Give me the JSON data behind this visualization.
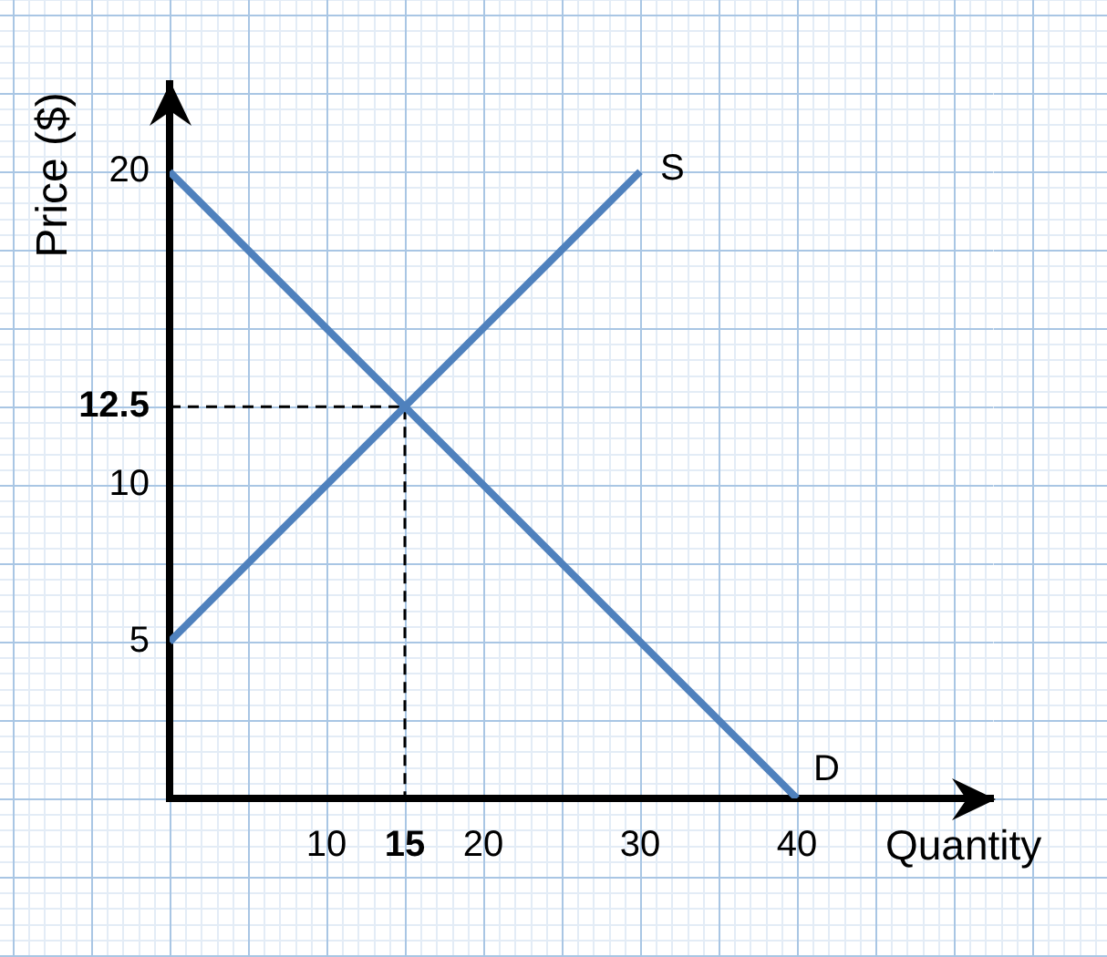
{
  "chart_data": {
    "type": "line",
    "xlabel": "Quantity",
    "ylabel": "Price ($)",
    "series": [
      {
        "name": "S",
        "color": "#4f81bd",
        "x": [
          0,
          30
        ],
        "values": [
          5,
          20
        ]
      },
      {
        "name": "D",
        "color": "#4f81bd",
        "x": [
          0,
          40
        ],
        "values": [
          20,
          0
        ]
      },
      {
        "color": "#000000",
        "x": [
          0,
          15,
          15
        ],
        "values": [
          12.5,
          12.5,
          0
        ],
        "line_style": "dashed"
      }
    ],
    "xlim": [
      0,
      52.5
    ],
    "ylim": [
      0,
      22.8
    ],
    "xticks": [
      {
        "value": 5,
        "label": null
      },
      10,
      15,
      20,
      {
        "value": 25,
        "label": null
      },
      30,
      {
        "value": 35,
        "label": null
      },
      40,
      {
        "value": 45,
        "label": null
      },
      {
        "value": 50,
        "label": null
      }
    ],
    "yticks": [
      {
        "value": 2.5,
        "label": null
      },
      5,
      {
        "value": 7.5,
        "label": null
      },
      10,
      12.5,
      {
        "value": 15,
        "label": null
      },
      {
        "value": 17.5,
        "label": null
      },
      20,
      {
        "value": 22.5,
        "label": null
      }
    ],
    "grid": true
  }
}
